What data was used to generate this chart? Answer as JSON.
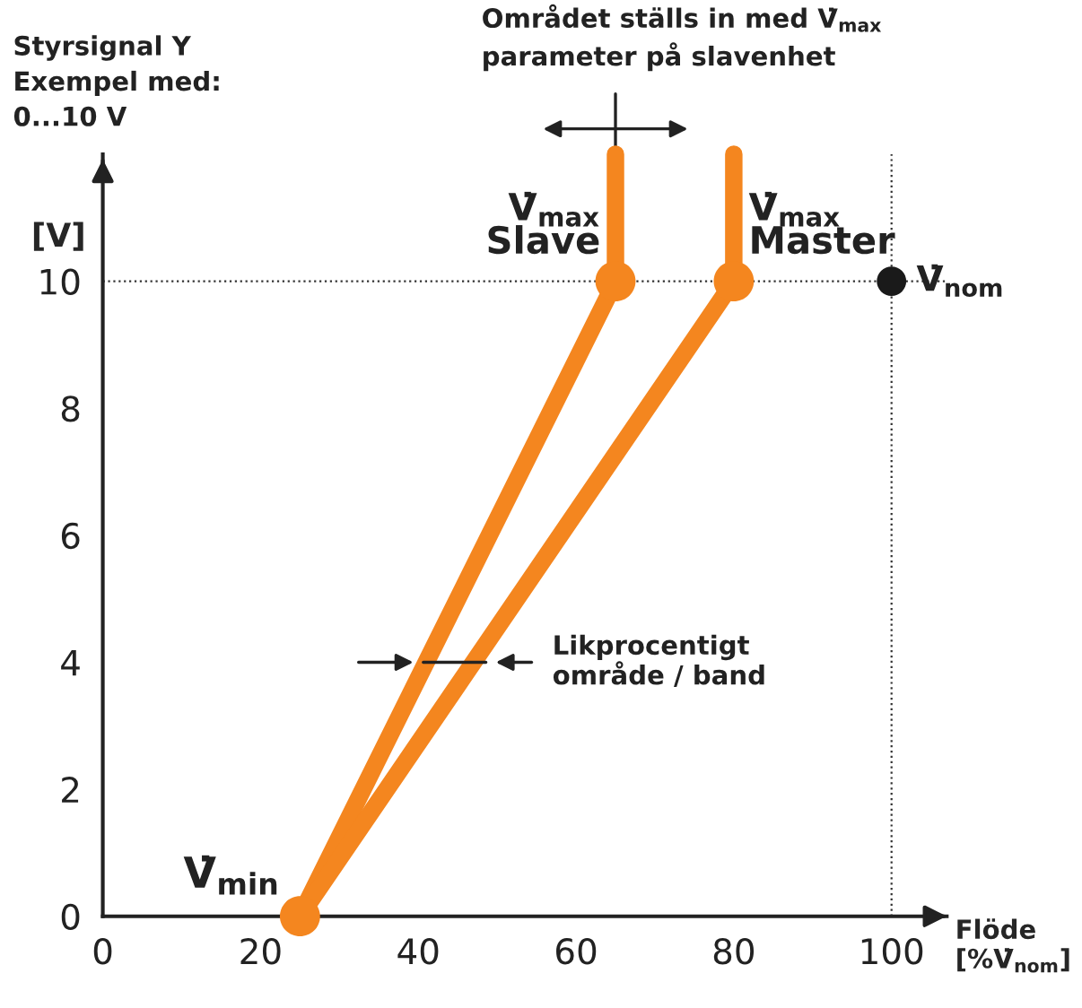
{
  "chart_data": {
    "type": "line",
    "xlabel": "Flöde\n[%V̇$_{nom}$]",
    "ylabel": "[V]",
    "xlim": [
      0,
      107
    ],
    "ylim": [
      0,
      12
    ],
    "xticks": [
      0,
      20,
      40,
      60,
      80,
      100
    ],
    "yticks": [
      0,
      2,
      4,
      6,
      8,
      10
    ],
    "grid": false,
    "legend": false,
    "series": [
      {
        "color": "#f4861f",
        "x": [
          25,
          65,
          65
        ],
        "values": [
          0,
          10,
          12
        ]
      },
      {
        "color": "#f4861f",
        "x": [
          25,
          80,
          80
        ],
        "values": [
          0,
          10,
          12
        ]
      },
      {
        "type": "scatter",
        "color": "#f4861f",
        "x": [
          25,
          65,
          80
        ],
        "values": [
          0,
          10,
          10
        ]
      },
      {
        "type": "scatter",
        "color": "#1a1a1a",
        "x": [
          100
        ],
        "values": [
          10
        ]
      }
    ],
    "ref_lines": [
      {
        "axis": "y",
        "value": 10,
        "color": "#333333",
        "line_style": "dotted"
      },
      {
        "axis": "x",
        "value": 100,
        "color": "#333333",
        "line_style": "dotted"
      }
    ],
    "annotations": [
      "Styrsignal Y\nExempel med:\n0...10 V",
      "Området ställs in med V̇$_{max}$\nparameter på slavenhet",
      "Likprocentigt\nområde / band",
      {
        "text": "V̇$_{max}$\nSlave",
        "x": 65,
        "y": 10
      },
      {
        "text": "V̇$_{max}$\nMaster",
        "x": 80,
        "y": 10
      },
      {
        "text": "V̇$_{nom}$",
        "x": 100,
        "y": 10
      },
      {
        "text": "V̇$_{min}$",
        "x": 25,
        "y": 0
      }
    ]
  }
}
